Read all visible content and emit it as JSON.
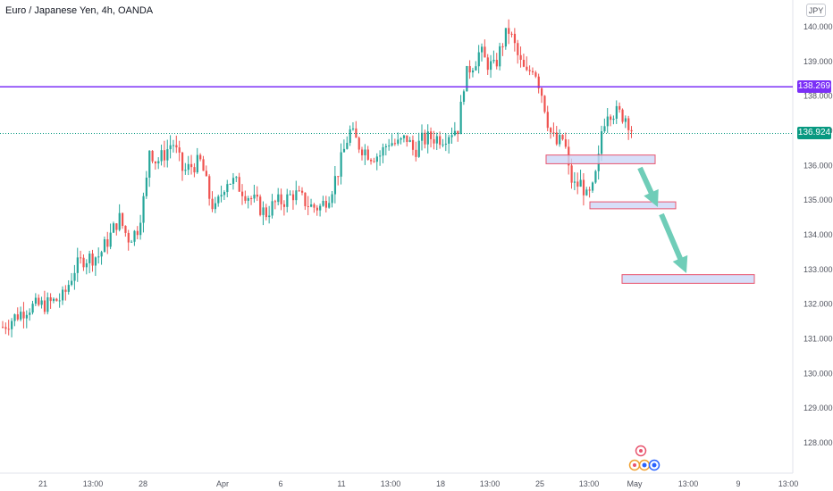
{
  "header": {
    "title": "Euro / Japanese Yen, 4h, OANDA"
  },
  "currency": "JPY",
  "price_lines": {
    "resistance": {
      "value": "138.269",
      "color": "#7b2ff7"
    },
    "current": {
      "value": "136.924",
      "color": "#089981"
    }
  },
  "colors": {
    "up": "#26a69a",
    "down": "#ef5350",
    "zone_fill": "#cdd7f7",
    "zone_border": "#e8546e",
    "arrow": "#6fcdb8"
  },
  "chart_data": {
    "type": "candlestick",
    "title": "Euro / Japanese Yen, 4h, OANDA",
    "xlabel": "",
    "ylabel": "",
    "ylim": [
      127.25,
      140.3
    ],
    "y_ticks": [
      128,
      129,
      130,
      131,
      132,
      133,
      134,
      135,
      136,
      137,
      138,
      139,
      140
    ],
    "y_tick_labels": [
      "128.000",
      "129.000",
      "130.000",
      "131.000",
      "132.000",
      "133.000",
      "134.000",
      "135.000",
      "136.000",
      "137.000",
      "138.000",
      "139.000",
      "140.000"
    ],
    "x_ticks": [
      "21",
      "13:00",
      "28",
      "Apr",
      "6",
      "11",
      "13:00",
      "18",
      "13:00",
      "25",
      "13:00",
      "May",
      "13:00",
      "9",
      "13:00"
    ],
    "grid": false,
    "series_path": [
      [
        0,
        131.3
      ],
      [
        14,
        131.6
      ],
      [
        30,
        131.9
      ],
      [
        52,
        132.0
      ],
      [
        70,
        132.2
      ],
      [
        82,
        133.0
      ],
      [
        92,
        133.3
      ],
      [
        110,
        133.4
      ],
      [
        123,
        134.0
      ],
      [
        132,
        134.5
      ],
      [
        142,
        133.9
      ],
      [
        152,
        134.1
      ],
      [
        162,
        135.3
      ],
      [
        166,
        136.5
      ],
      [
        174,
        136.1
      ],
      [
        182,
        136.3
      ],
      [
        192,
        136.7
      ],
      [
        204,
        135.8
      ],
      [
        214,
        136.0
      ],
      [
        224,
        136.1
      ],
      [
        234,
        135.0
      ],
      [
        240,
        134.7
      ],
      [
        252,
        135.6
      ],
      [
        262,
        135.5
      ],
      [
        274,
        135.2
      ],
      [
        286,
        134.9
      ],
      [
        296,
        134.6
      ],
      [
        306,
        134.9
      ],
      [
        318,
        135.0
      ],
      [
        328,
        135.2
      ],
      [
        338,
        135.0
      ],
      [
        348,
        134.8
      ],
      [
        358,
        134.8
      ],
      [
        368,
        135.2
      ],
      [
        378,
        135.9
      ],
      [
        390,
        137.0
      ],
      [
        400,
        136.6
      ],
      [
        414,
        136.3
      ],
      [
        424,
        136.3
      ],
      [
        434,
        136.7
      ],
      [
        444,
        136.6
      ],
      [
        454,
        136.8
      ],
      [
        462,
        136.4
      ],
      [
        470,
        136.7
      ],
      [
        480,
        136.8
      ],
      [
        494,
        136.8
      ],
      [
        504,
        137.0
      ],
      [
        512,
        137.1
      ],
      [
        518,
        138.4
      ],
      [
        524,
        138.8
      ],
      [
        530,
        139.0
      ],
      [
        536,
        139.3
      ],
      [
        542,
        139.0
      ],
      [
        552,
        138.8
      ],
      [
        562,
        139.6
      ],
      [
        568,
        139.9
      ],
      [
        574,
        139.5
      ],
      [
        580,
        139.0
      ],
      [
        588,
        138.6
      ],
      [
        596,
        138.9
      ],
      [
        606,
        138.0
      ],
      [
        614,
        137.0
      ],
      [
        622,
        136.6
      ],
      [
        630,
        136.8
      ],
      [
        636,
        135.7
      ],
      [
        642,
        135.4
      ],
      [
        650,
        135.5
      ],
      [
        656,
        135.0
      ],
      [
        662,
        135.3
      ],
      [
        668,
        136.0
      ],
      [
        672,
        137.0
      ],
      [
        678,
        137.6
      ],
      [
        690,
        137.5
      ],
      [
        700,
        137.4
      ],
      [
        708,
        136.9
      ]
    ],
    "annotations": {
      "zones": [
        {
          "from_x": 611,
          "to_x": 733,
          "top": 136.3,
          "bottom": 136.05
        },
        {
          "from_x": 660,
          "to_x": 756,
          "top": 134.95,
          "bottom": 134.75
        },
        {
          "from_x": 696,
          "to_x": 844,
          "top": 132.85,
          "bottom": 132.6
        }
      ]
    }
  }
}
